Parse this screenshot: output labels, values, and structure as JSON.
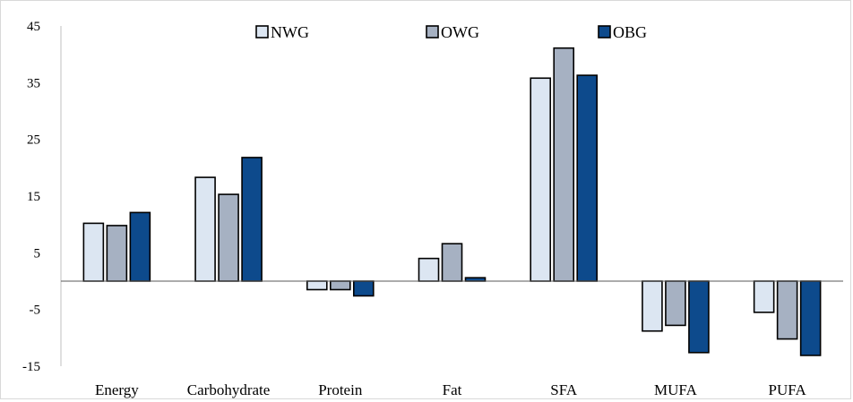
{
  "chart_data": {
    "type": "bar",
    "title": "",
    "xlabel": "",
    "ylabel": "",
    "categories": [
      "Energy",
      "Carbohydrate",
      "Protein",
      "Fat",
      "SFA",
      "MUFA",
      "PUFA"
    ],
    "series": [
      {
        "name": "NWG",
        "color": "#dce6f2",
        "values": [
          10.2,
          18.3,
          -1.5,
          4.0,
          35.8,
          -8.8,
          -5.5
        ]
      },
      {
        "name": "OWG",
        "color": "#a6b1c2",
        "values": [
          9.8,
          15.3,
          -1.5,
          6.6,
          41.1,
          -7.8,
          -10.2
        ]
      },
      {
        "name": "OBG",
        "color": "#0d4a8c",
        "values": [
          12.1,
          21.8,
          -2.6,
          0.6,
          36.3,
          -12.6,
          -13.1
        ]
      }
    ],
    "yticks": [
      45,
      35,
      25,
      15,
      5,
      -5,
      -15
    ],
    "ylim": [
      -15,
      45
    ],
    "grid": false,
    "legend_position": "top-center"
  }
}
